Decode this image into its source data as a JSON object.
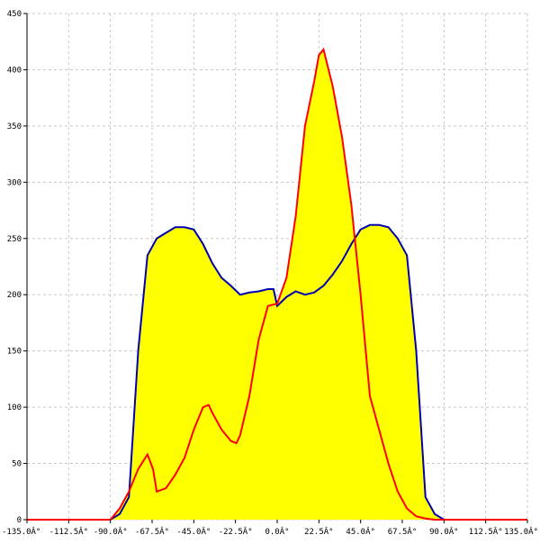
{
  "chart_data": {
    "type": "area-line",
    "xlim": [
      -135,
      135
    ],
    "ylim": [
      0,
      450
    ],
    "xticks": [
      {
        "value": -135,
        "label": "-135.0Â°"
      },
      {
        "value": -112.5,
        "label": "-112.5Â°"
      },
      {
        "value": -90,
        "label": "-90.0Â°"
      },
      {
        "value": -67.5,
        "label": "-67.5Â°"
      },
      {
        "value": -45,
        "label": "-45.0Â°"
      },
      {
        "value": -22.5,
        "label": "-22.5Â°"
      },
      {
        "value": 0,
        "label": "0.0Â°"
      },
      {
        "value": 22.5,
        "label": "22.5Â°"
      },
      {
        "value": 45,
        "label": "45.0Â°"
      },
      {
        "value": 67.5,
        "label": "67.5Â°"
      },
      {
        "value": 90,
        "label": "90.0Â°"
      },
      {
        "value": 112.5,
        "label": "112.5Â°"
      },
      {
        "value": 135,
        "label": "135.0Â°"
      }
    ],
    "yticks": [
      0,
      50,
      100,
      150,
      200,
      250,
      300,
      350,
      400,
      450
    ],
    "grid": true,
    "fill": "#ffff00",
    "series": [
      {
        "color": "#0000b0",
        "x": [
          -135,
          -90,
          -85,
          -80,
          -75,
          -70,
          -65,
          -60,
          -55,
          -50,
          -45,
          -40,
          -35,
          -30,
          -25,
          -20,
          -15,
          -10,
          -5,
          -2,
          0,
          5,
          10,
          15,
          20,
          25,
          30,
          35,
          40,
          45,
          50,
          55,
          60,
          65,
          70,
          75,
          80,
          85,
          90,
          135
        ],
        "values": [
          0,
          0,
          5,
          20,
          150,
          235,
          250,
          255,
          260,
          260,
          258,
          245,
          228,
          215,
          208,
          200,
          202,
          203,
          205,
          205,
          190,
          198,
          203,
          200,
          202,
          208,
          218,
          230,
          245,
          258,
          262,
          262,
          260,
          250,
          235,
          150,
          20,
          5,
          0,
          0
        ]
      },
      {
        "color": "#ff0000",
        "x": [
          -135,
          -90,
          -85,
          -80,
          -75,
          -70,
          -67,
          -65,
          -60,
          -55,
          -50,
          -45,
          -40,
          -37,
          -35,
          -30,
          -25,
          -22,
          -20,
          -15,
          -10,
          -5,
          0,
          5,
          10,
          15,
          20,
          22.5,
          25,
          30,
          35,
          40,
          45,
          50,
          55,
          60,
          65,
          70,
          75,
          80,
          85,
          90,
          135
        ],
        "values": [
          0,
          0,
          10,
          25,
          45,
          58,
          45,
          25,
          28,
          40,
          55,
          80,
          100,
          102,
          95,
          80,
          70,
          68,
          75,
          110,
          160,
          190,
          192,
          215,
          270,
          350,
          390,
          413,
          418,
          385,
          340,
          280,
          200,
          110,
          80,
          50,
          25,
          10,
          3,
          1,
          0,
          0,
          0
        ]
      }
    ]
  }
}
